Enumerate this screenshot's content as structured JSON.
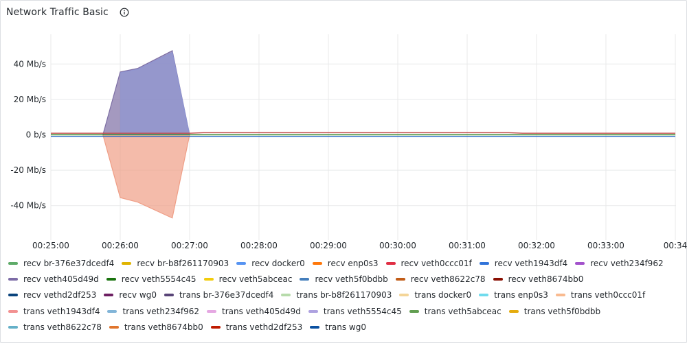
{
  "panel": {
    "title": "Network Traffic Basic",
    "info_icon": "info-circle-icon"
  },
  "chart_data": {
    "type": "area",
    "title": "Network Traffic Basic",
    "y_unit": "b/s",
    "y_ticks": [
      "40 Mb/s",
      "20 Mb/s",
      "0 b/s",
      "-20 Mb/s",
      "-40 Mb/s"
    ],
    "y_tick_values": [
      40,
      20,
      0,
      -20,
      -40
    ],
    "ylim": [
      -57,
      57
    ],
    "x_ticks": [
      "00:25:00",
      "00:26:00",
      "00:27:00",
      "00:28:00",
      "00:29:00",
      "00:30:00",
      "00:31:00",
      "00:32:00",
      "00:33:00",
      "00:34"
    ],
    "x_tick_minutes": [
      0,
      1,
      2,
      3,
      4,
      5,
      6,
      7,
      8,
      9
    ],
    "xlim": [
      0,
      9
    ],
    "grid": true,
    "series": [
      {
        "name": "trans br-376e37dcedf4",
        "color": "#7d6ea4",
        "direction": "up",
        "x": [
          0.75,
          1.0,
          1.25,
          1.75,
          2.0
        ],
        "values": [
          0,
          35.5,
          37.5,
          47.5,
          0
        ]
      },
      {
        "name": "recv veth5554c45",
        "color": "#8e95d2",
        "direction": "up",
        "x": [
          1.0,
          1.25,
          1.75,
          2.0
        ],
        "values": [
          35,
          37,
          46.5,
          0
        ]
      },
      {
        "name": "recv enp0s3",
        "color": "#ef9e86",
        "direction": "down",
        "x": [
          0.75,
          1.0,
          1.25,
          1.75,
          2.0
        ],
        "values": [
          0,
          -35.5,
          -38,
          -47,
          0
        ]
      },
      {
        "name": "recv veth0ccc01f",
        "color": "#c24a4a",
        "direction": "flat",
        "x": [
          0,
          2.0,
          2.2,
          6.6,
          6.8,
          9.0
        ],
        "values": [
          0.9,
          0.9,
          1.2,
          1.2,
          0.9,
          0.9
        ]
      },
      {
        "name": "trans wg0",
        "color": "#1f60c4",
        "direction": "flat",
        "x": [
          0,
          9.0
        ],
        "values": [
          -1,
          -1
        ]
      },
      {
        "name": "recv veth5f0bdbb",
        "color": "#37872d",
        "direction": "flat",
        "x": [
          0,
          9.0
        ],
        "values": [
          0,
          0
        ]
      }
    ],
    "legend": [
      [
        {
          "label": "recv br-376e37dcedf4",
          "color": "#5eab69"
        },
        {
          "label": "recv br-b8f261170903",
          "color": "#e0b400"
        },
        {
          "label": "recv docker0",
          "color": "#5794f2"
        },
        {
          "label": "recv enp0s3",
          "color": "#ff780a"
        },
        {
          "label": "recv veth0ccc01f",
          "color": "#e02f44"
        },
        {
          "label": "recv veth1943df4",
          "color": "#3274d9"
        },
        {
          "label": "recv veth234f962",
          "color": "#a352cc"
        }
      ],
      [
        {
          "label": "recv veth405d49d",
          "color": "#7c6ba6"
        },
        {
          "label": "recv veth5554c45",
          "color": "#19730e"
        },
        {
          "label": "recv veth5abceac",
          "color": "#f2cc0c"
        },
        {
          "label": "recv veth5f0bdbb",
          "color": "#447ebc"
        },
        {
          "label": "recv veth8622c78",
          "color": "#c15c17"
        },
        {
          "label": "recv veth8674bb0",
          "color": "#890f02"
        }
      ],
      [
        {
          "label": "recv vethd2df253",
          "color": "#0a437c"
        },
        {
          "label": "recv wg0",
          "color": "#6d1f62"
        },
        {
          "label": "trans br-376e37dcedf4",
          "color": "#584477"
        },
        {
          "label": "trans br-b8f261170903",
          "color": "#b7dbab"
        },
        {
          "label": "trans docker0",
          "color": "#f4d598"
        },
        {
          "label": "trans enp0s3",
          "color": "#70dbed"
        },
        {
          "label": "trans veth0ccc01f",
          "color": "#f9ba8f"
        }
      ],
      [
        {
          "label": "trans veth1943df4",
          "color": "#f29191"
        },
        {
          "label": "trans veth234f962",
          "color": "#82b5d8"
        },
        {
          "label": "trans veth405d49d",
          "color": "#e5a8e2"
        },
        {
          "label": "trans veth5554c45",
          "color": "#aea2e0"
        },
        {
          "label": "trans veth5abceac",
          "color": "#629e51"
        },
        {
          "label": "trans veth5f0bdbb",
          "color": "#e5ac0e"
        }
      ],
      [
        {
          "label": "trans veth8622c78",
          "color": "#64b0c8"
        },
        {
          "label": "trans veth8674bb0",
          "color": "#e0752d"
        },
        {
          "label": "trans vethd2df253",
          "color": "#bf1b00"
        },
        {
          "label": "trans wg0",
          "color": "#0a50a1"
        }
      ]
    ]
  }
}
